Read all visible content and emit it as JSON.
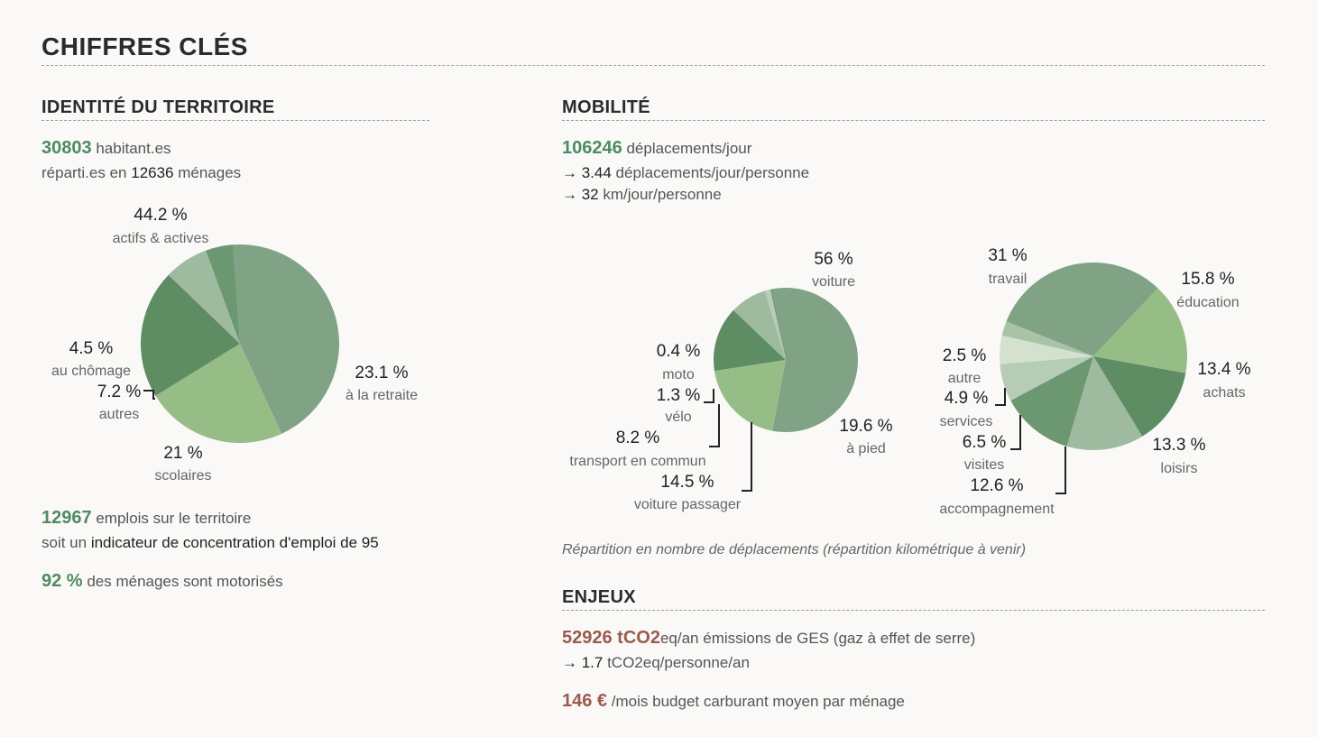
{
  "page_title": "CHIFFRES CLÉS",
  "identite": {
    "title": "IDENTITÉ DU TERRITOIRE",
    "population_value": "30803",
    "population_label": " habitant.es",
    "households_prefix": "réparti.es en ",
    "households_value": "12636",
    "households_suffix": " ménages",
    "jobs_value": "12967",
    "jobs_label": " emplois sur le territoire",
    "concentration_prefix": "soit un ",
    "concentration_label": "indicateur de concentration d'emploi de 95",
    "motorised_value": "92 %",
    "motorised_label": " des ménages sont motorisés"
  },
  "mobilite": {
    "title": "MOBILITÉ",
    "trips_value": "106246",
    "trips_label": " déplacements/jour",
    "per_person_value": "→ 3.44",
    "per_person_label": " déplacements/jour/personne",
    "km_value": "→ 32",
    "km_label": " km/jour/personne",
    "caption": "Répartition en nombre de déplacements (répartition kilométrique à venir)"
  },
  "enjeux": {
    "title": "ENJEUX",
    "emissions_value": "52926 tCO2",
    "emissions_label": "eq/an émissions de GES (gaz à effet de serre)",
    "emissions_pp_value": "→ 1.7",
    "emissions_pp_label": " tCO2eq/personne/an",
    "fuel_value": "146 €",
    "fuel_label": " /mois budget carburant moyen par ménage"
  },
  "chart_data": [
    {
      "type": "pie",
      "title": "",
      "slices": [
        {
          "label": "actifs & actives",
          "value": 44.2,
          "pct_text": "44.2 %",
          "color": "#7fa384"
        },
        {
          "label": "à la retraite",
          "value": 23.1,
          "pct_text": "23.1 %",
          "color": "#97bd86"
        },
        {
          "label": "scolaires",
          "value": 21,
          "pct_text": "21 %",
          "color": "#5e8d64"
        },
        {
          "label": "autres",
          "value": 7.2,
          "pct_text": "7.2 %",
          "color": "#9fbb9f"
        },
        {
          "label": "au chômage",
          "value": 4.5,
          "pct_text": "4.5 %",
          "color": "#6b9870"
        }
      ]
    },
    {
      "type": "pie",
      "title": "",
      "slices": [
        {
          "label": "voiture",
          "value": 56,
          "pct_text": "56 %",
          "color": "#7fa384"
        },
        {
          "label": "à pied",
          "value": 19.6,
          "pct_text": "19.6 %",
          "color": "#97bd86"
        },
        {
          "label": "voiture passager",
          "value": 14.5,
          "pct_text": "14.5 %",
          "color": "#5e8d64"
        },
        {
          "label": "transport en commun",
          "value": 8.2,
          "pct_text": "8.2 %",
          "color": "#9fbb9f"
        },
        {
          "label": "vélo",
          "value": 1.3,
          "pct_text": "1.3 %",
          "color": "#b7ccb4"
        },
        {
          "label": "moto",
          "value": 0.4,
          "pct_text": "0.4 %",
          "color": "#6b9870"
        }
      ]
    },
    {
      "type": "pie",
      "title": "",
      "slices": [
        {
          "label": "travail",
          "value": 31,
          "pct_text": "31 %",
          "color": "#7fa384"
        },
        {
          "label": "éducation",
          "value": 15.8,
          "pct_text": "15.8 %",
          "color": "#97bd86"
        },
        {
          "label": "achats",
          "value": 13.4,
          "pct_text": "13.4 %",
          "color": "#5e8d64"
        },
        {
          "label": "loisirs",
          "value": 13.3,
          "pct_text": "13.3 %",
          "color": "#9fbb9f"
        },
        {
          "label": "accompagnement",
          "value": 12.6,
          "pct_text": "12.6 %",
          "color": "#6b9870"
        },
        {
          "label": "visites",
          "value": 6.5,
          "pct_text": "6.5 %",
          "color": "#b7ccb4"
        },
        {
          "label": "services",
          "value": 4.9,
          "pct_text": "4.9 %",
          "color": "#d3e2cf"
        },
        {
          "label": "autre",
          "value": 2.5,
          "pct_text": "2.5 %",
          "color": "#a8c3a6"
        }
      ]
    }
  ]
}
